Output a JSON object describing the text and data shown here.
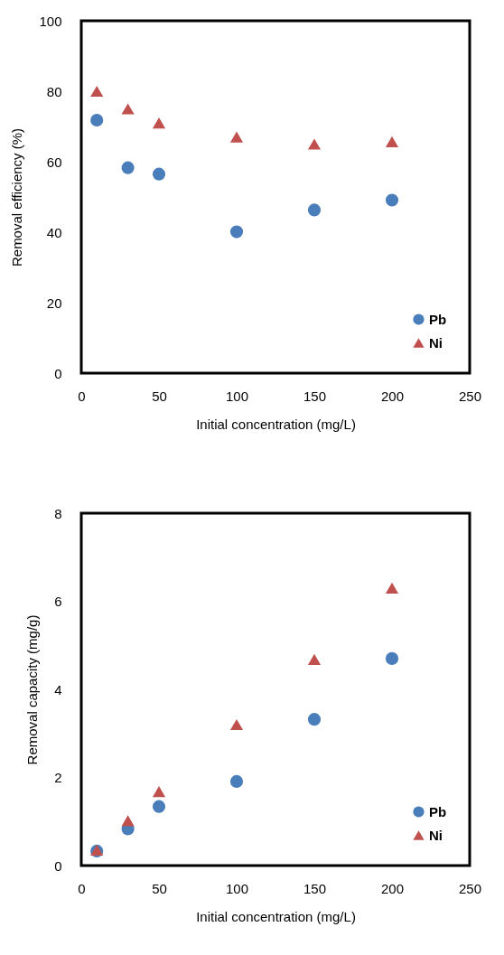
{
  "chart_data": [
    {
      "type": "scatter",
      "xlabel": "Initial concentration (mg/L)",
      "ylabel": "Removal efficiency (%)",
      "x": [
        10,
        30,
        50,
        100,
        150,
        200
      ],
      "xlim": [
        0,
        250
      ],
      "xticks": [
        0,
        50,
        100,
        150,
        200,
        250
      ],
      "ylim": [
        0,
        100
      ],
      "yticks": [
        0,
        20,
        40,
        60,
        80,
        100
      ],
      "grid": false,
      "legend": "bottom right",
      "series": [
        {
          "name": "Pb",
          "color": "#4a7ebb",
          "marker": "circle",
          "values": [
            71.8,
            58.3,
            56.5,
            40.1,
            46.3,
            49.1
          ]
        },
        {
          "name": "Ni",
          "color": "#c0504d",
          "marker": "triangle",
          "values": [
            80,
            75,
            71,
            67,
            65,
            65.7
          ]
        }
      ]
    },
    {
      "type": "scatter",
      "xlabel": "Initial concentration (mg/L)",
      "ylabel": "Removal capacity (mg/g)",
      "x": [
        10,
        30,
        50,
        100,
        150,
        200
      ],
      "xlim": [
        0,
        250
      ],
      "xticks": [
        0,
        50,
        100,
        150,
        200,
        250
      ],
      "ylim": [
        0,
        8
      ],
      "yticks": [
        0,
        2,
        4,
        6,
        8
      ],
      "grid": false,
      "legend": "bottom right",
      "series": [
        {
          "name": "Pb",
          "color": "#4a7ebb",
          "marker": "circle",
          "values": [
            0.33,
            0.83,
            1.34,
            1.91,
            3.32,
            4.7
          ]
        },
        {
          "name": "Ni",
          "color": "#c0504d",
          "marker": "triangle",
          "values": [
            0.35,
            1.02,
            1.68,
            3.2,
            4.68,
            6.3
          ]
        }
      ]
    }
  ]
}
